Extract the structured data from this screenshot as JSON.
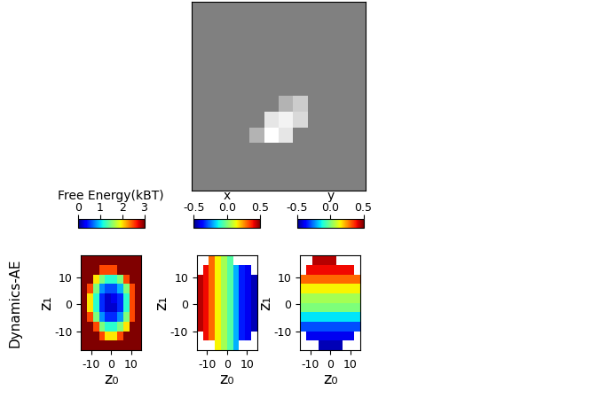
{
  "row_label": "Dynamics-AE",
  "chart_data": [
    {
      "type": "image",
      "tick_labels": false,
      "color": "gray",
      "value_range": [
        0,
        1
      ],
      "cells": [
        [
          0.5,
          0.5,
          0.5,
          0.5,
          0.5,
          0.5,
          0.5,
          0.5,
          0.5,
          0.5,
          0.5,
          0.5
        ],
        [
          0.5,
          0.5,
          0.5,
          0.5,
          0.5,
          0.5,
          0.5,
          0.5,
          0.5,
          0.5,
          0.5,
          0.5
        ],
        [
          0.5,
          0.5,
          0.5,
          0.5,
          0.5,
          0.5,
          0.5,
          0.5,
          0.5,
          0.5,
          0.5,
          0.5
        ],
        [
          0.5,
          0.5,
          0.5,
          0.5,
          0.5,
          0.5,
          0.5,
          0.5,
          0.5,
          0.5,
          0.5,
          0.5
        ],
        [
          0.5,
          0.5,
          0.5,
          0.5,
          0.5,
          0.5,
          0.5,
          0.5,
          0.5,
          0.5,
          0.5,
          0.5
        ],
        [
          0.5,
          0.5,
          0.5,
          0.5,
          0.5,
          0.5,
          0.5,
          0.5,
          0.5,
          0.5,
          0.5,
          0.5
        ],
        [
          0.5,
          0.5,
          0.5,
          0.5,
          0.5,
          0.5,
          0.7,
          0.8,
          0.5,
          0.5,
          0.5,
          0.5
        ],
        [
          0.5,
          0.5,
          0.5,
          0.5,
          0.5,
          0.9,
          0.95,
          0.85,
          0.5,
          0.5,
          0.5,
          0.5
        ],
        [
          0.5,
          0.5,
          0.5,
          0.5,
          0.7,
          1.0,
          0.9,
          0.5,
          0.5,
          0.5,
          0.5,
          0.5
        ],
        [
          0.5,
          0.5,
          0.5,
          0.5,
          0.5,
          0.5,
          0.5,
          0.5,
          0.5,
          0.5,
          0.5,
          0.5
        ],
        [
          0.5,
          0.5,
          0.5,
          0.5,
          0.5,
          0.5,
          0.5,
          0.5,
          0.5,
          0.5,
          0.5,
          0.5
        ],
        [
          0.5,
          0.5,
          0.5,
          0.5,
          0.5,
          0.5,
          0.5,
          0.5,
          0.5,
          0.5,
          0.5,
          0.5
        ]
      ]
    },
    {
      "type": "heatmap",
      "xlabel": "z₀",
      "ylabel": "z₁",
      "color": "jet",
      "xlim": [
        -15,
        15
      ],
      "ylim": [
        -17,
        18
      ],
      "xticks": [
        -10,
        0,
        10
      ],
      "yticks": [
        -10,
        0,
        10
      ],
      "x_edges": [
        -15,
        -12,
        -9,
        -6,
        -3,
        0,
        3,
        6,
        9,
        12,
        15
      ],
      "y_edges": [
        -17,
        -13.5,
        -10,
        -6.5,
        -3,
        0.5,
        4,
        7.5,
        11,
        14.5,
        18
      ],
      "colorbar_label": "Free Energy(kBT)",
      "colorbar_range": [
        0,
        3
      ],
      "colorbar_ticks": [
        0,
        1,
        2,
        3
      ],
      "cells": [
        [
          3,
          3,
          3,
          3,
          3,
          3,
          3,
          3,
          3,
          3
        ],
        [
          3,
          3,
          3,
          2.5,
          2,
          2,
          2.5,
          3,
          3,
          3
        ],
        [
          3,
          3,
          2.5,
          1.5,
          1.2,
          1.2,
          1.5,
          2,
          3,
          3
        ],
        [
          3,
          2.5,
          1.5,
          0.8,
          0.5,
          0.5,
          0.8,
          1.5,
          2.5,
          3
        ],
        [
          3,
          2,
          1.2,
          0.5,
          0.2,
          0.2,
          0.5,
          1.2,
          2.5,
          3
        ],
        [
          3,
          2,
          1.2,
          0.5,
          0.2,
          0.3,
          0.5,
          1.2,
          2.5,
          3
        ],
        [
          3,
          2.5,
          1.5,
          0.8,
          0.6,
          0.6,
          0.9,
          1.5,
          2.5,
          3
        ],
        [
          3,
          3,
          2,
          1.5,
          1.2,
          1.2,
          1.5,
          2.5,
          3,
          3
        ],
        [
          3,
          3,
          3,
          2.5,
          2.5,
          2.5,
          3,
          3,
          3,
          3
        ],
        [
          3,
          3,
          3,
          3,
          3,
          3,
          3,
          3,
          3,
          3
        ]
      ]
    },
    {
      "type": "heatmap",
      "xlabel": "z₀",
      "ylabel": "z₁",
      "color": "jet",
      "xlim": [
        -15,
        15
      ],
      "ylim": [
        -17,
        18
      ],
      "xticks": [
        -10,
        0,
        10
      ],
      "yticks": [
        -10,
        0,
        10
      ],
      "x_edges": [
        -15,
        -12,
        -9,
        -6,
        -3,
        0,
        3,
        6,
        9,
        12,
        15
      ],
      "y_edges": [
        -17,
        -13.5,
        -10,
        -6.5,
        -3,
        0.5,
        4,
        7.5,
        11,
        14.5,
        18
      ],
      "colorbar_label": "x",
      "colorbar_range": [
        -0.5,
        0.5
      ],
      "colorbar_ticks": [
        -0.5,
        {
          "value": 0,
          "label": "0.0"
        },
        0.5
      ],
      "cells": [
        [
          null,
          null,
          null,
          0.15,
          0.05,
          -0.05,
          -0.2,
          null,
          null,
          null
        ],
        [
          null,
          0.4,
          0.3,
          0.15,
          0.05,
          -0.05,
          -0.2,
          -0.35,
          -0.4,
          null
        ],
        [
          0.45,
          0.4,
          0.3,
          0.15,
          0.05,
          -0.05,
          -0.2,
          -0.35,
          -0.4,
          -0.45
        ],
        [
          0.45,
          0.4,
          0.3,
          0.15,
          0.05,
          -0.05,
          -0.2,
          -0.35,
          -0.4,
          -0.45
        ],
        [
          0.45,
          0.4,
          0.3,
          0.15,
          0.05,
          -0.05,
          -0.2,
          -0.35,
          -0.4,
          -0.45
        ],
        [
          0.45,
          0.4,
          0.3,
          0.15,
          0.05,
          -0.05,
          -0.2,
          -0.35,
          -0.4,
          -0.45
        ],
        [
          0.45,
          0.4,
          0.3,
          0.15,
          0.05,
          -0.05,
          -0.2,
          -0.35,
          -0.4,
          -0.45
        ],
        [
          0.45,
          0.4,
          0.3,
          0.15,
          0.05,
          -0.05,
          -0.2,
          -0.35,
          -0.4,
          -0.45
        ],
        [
          null,
          0.4,
          0.3,
          0.15,
          0.05,
          -0.05,
          -0.2,
          -0.35,
          -0.4,
          null
        ],
        [
          null,
          null,
          0.3,
          0.15,
          0.05,
          -0.05,
          null,
          null,
          null,
          null
        ]
      ]
    },
    {
      "type": "heatmap",
      "xlabel": "z₀",
      "ylabel": "z₁",
      "color": "jet",
      "xlim": [
        -15,
        15
      ],
      "ylim": [
        -17,
        18
      ],
      "xticks": [
        -10,
        0,
        10
      ],
      "yticks": [
        -10,
        0,
        10
      ],
      "x_edges": [
        -15,
        -12,
        -9,
        -6,
        -3,
        0,
        3,
        6,
        9,
        12,
        15
      ],
      "y_edges": [
        -17,
        -13.5,
        -10,
        -6.5,
        -3,
        0.5,
        4,
        7.5,
        11,
        14.5,
        18
      ],
      "colorbar_label": "y",
      "colorbar_range": [
        -0.5,
        0.5
      ],
      "colorbar_ticks": [
        -0.5,
        {
          "value": 0,
          "label": "0.0"
        },
        0.5
      ],
      "cells": [
        [
          null,
          null,
          null,
          -0.45,
          -0.45,
          -0.45,
          -0.45,
          null,
          null,
          null
        ],
        [
          null,
          -0.4,
          -0.4,
          -0.4,
          -0.4,
          -0.4,
          -0.4,
          -0.4,
          -0.4,
          null
        ],
        [
          -0.3,
          -0.3,
          -0.3,
          -0.3,
          -0.3,
          -0.3,
          -0.3,
          -0.3,
          -0.3,
          -0.3
        ],
        [
          -0.15,
          -0.15,
          -0.15,
          -0.15,
          -0.15,
          -0.15,
          -0.15,
          -0.15,
          -0.15,
          -0.15
        ],
        [
          0.0,
          0.0,
          0.0,
          0.0,
          0.0,
          0.0,
          0.0,
          0.0,
          0.0,
          0.0
        ],
        [
          0.05,
          0.05,
          0.05,
          0.05,
          0.05,
          0.05,
          0.05,
          0.05,
          0.05,
          0.05
        ],
        [
          0.15,
          0.15,
          0.15,
          0.15,
          0.15,
          0.15,
          0.15,
          0.15,
          0.15,
          0.15
        ],
        [
          0.3,
          0.3,
          0.3,
          0.3,
          0.3,
          0.3,
          0.3,
          0.3,
          0.3,
          0.3
        ],
        [
          null,
          0.4,
          0.4,
          0.4,
          0.4,
          0.4,
          0.4,
          0.4,
          0.4,
          null
        ],
        [
          null,
          null,
          0.45,
          0.45,
          0.45,
          0.45,
          null,
          null,
          null,
          null
        ]
      ]
    }
  ]
}
